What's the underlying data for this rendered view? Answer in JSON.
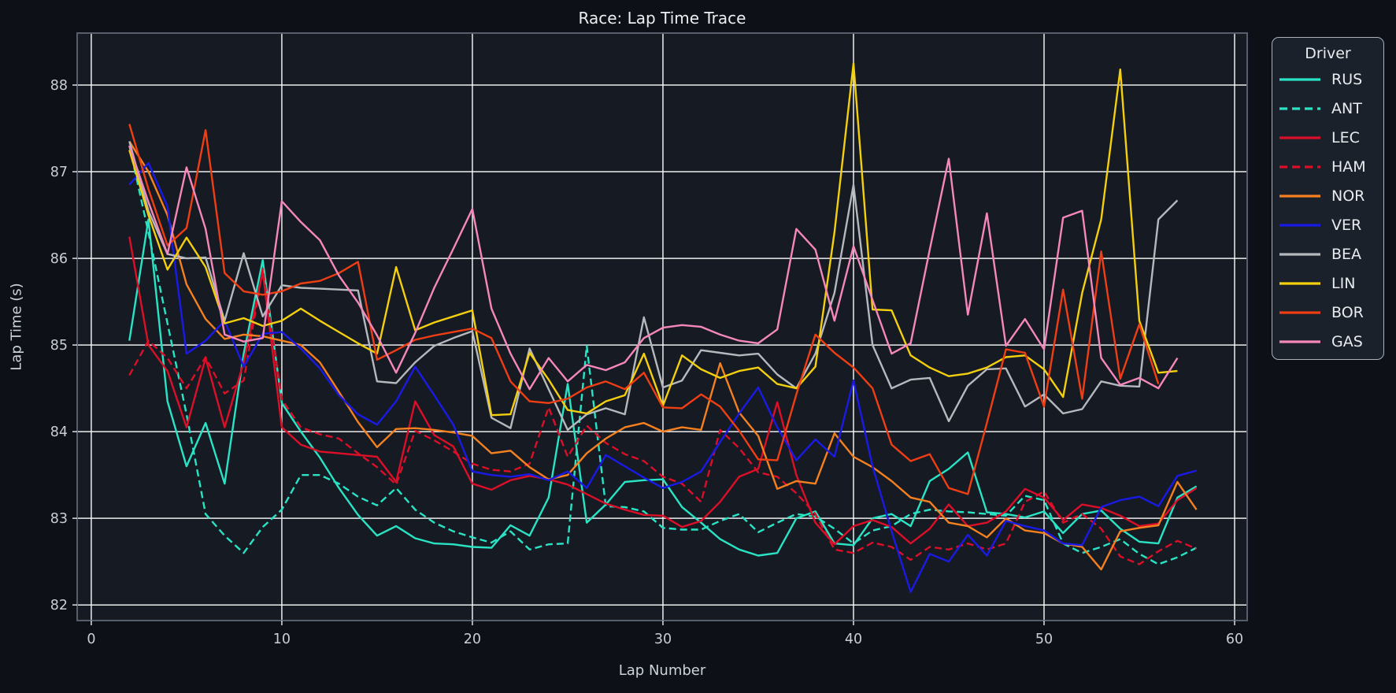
{
  "title": "Race: Lap Time Trace",
  "chart_data": {
    "type": "line",
    "title": "Race: Lap Time Trace",
    "xlabel": "Lap Number",
    "ylabel": "Lap Time (s)",
    "xlim": [
      -0.74,
      60.66
    ],
    "ylim": [
      81.82,
      88.6
    ],
    "xticks": [
      0,
      10,
      20,
      30,
      40,
      50,
      60
    ],
    "yticks": [
      82,
      83,
      84,
      85,
      86,
      87,
      88
    ],
    "grid": true,
    "legend": {
      "title": "Driver",
      "position": "upper right"
    },
    "colors": {
      "background": "#0d1117",
      "axes_background": "#161b23",
      "gridline": "#ffffff",
      "spine": "#555e6a",
      "tick_label": "#c9ced6",
      "text": "#e9ecef"
    },
    "series": [
      {
        "name": "RUS",
        "color": "#2ae3c5",
        "style": "solid",
        "start_lap": 2,
        "lap_times": [
          85.05,
          86.45,
          84.35,
          83.6,
          84.1,
          83.4,
          84.9,
          85.98,
          84.33,
          84.0,
          83.7,
          83.35,
          83.04,
          82.8,
          82.91,
          82.77,
          82.71,
          82.7,
          82.67,
          82.66,
          82.92,
          82.8,
          83.24,
          84.55,
          82.95,
          83.16,
          83.42,
          83.44,
          83.45,
          83.13,
          82.95,
          82.76,
          82.64,
          82.57,
          82.6,
          83.0,
          83.08,
          82.71,
          82.69,
          83.0,
          83.05,
          82.91,
          83.43,
          83.57,
          83.76,
          83.07,
          83.05,
          83.01,
          83.08,
          82.83,
          83.05,
          83.09,
          82.88,
          82.73,
          82.71,
          83.24,
          83.37
        ]
      },
      {
        "name": "ANT",
        "color": "#2ae3c5",
        "style": "dashed",
        "start_lap": 2,
        "lap_times": [
          87.3,
          86.3,
          85.25,
          84.2,
          83.05,
          82.8,
          82.6,
          82.9,
          83.1,
          83.5,
          83.5,
          83.4,
          83.25,
          83.15,
          83.35,
          83.1,
          82.95,
          82.85,
          82.78,
          82.72,
          82.85,
          82.64,
          82.7,
          82.71,
          84.99,
          83.14,
          83.13,
          83.08,
          82.89,
          82.87,
          82.87,
          82.97,
          83.05,
          82.84,
          82.95,
          83.05,
          83.02,
          82.88,
          82.71,
          82.86,
          82.91,
          83.05,
          83.1,
          83.08,
          83.07,
          83.05,
          83.03,
          83.26,
          83.21,
          82.71,
          82.6,
          82.67,
          82.76,
          82.59,
          82.47,
          82.55,
          82.66
        ]
      },
      {
        "name": "LEC",
        "color": "#dc0f28",
        "style": "solid",
        "start_lap": 2,
        "lap_times": [
          86.25,
          85.0,
          84.7,
          84.05,
          84.85,
          84.05,
          84.8,
          85.85,
          84.05,
          83.85,
          83.77,
          83.75,
          83.73,
          83.71,
          83.42,
          84.35,
          83.96,
          83.83,
          83.4,
          83.33,
          83.44,
          83.49,
          83.45,
          83.39,
          83.28,
          83.17,
          83.1,
          83.04,
          83.03,
          82.9,
          82.97,
          83.19,
          83.48,
          83.57,
          84.34,
          83.5,
          82.95,
          82.7,
          82.91,
          82.98,
          82.9,
          82.71,
          82.88,
          83.16,
          82.91,
          82.95,
          83.08,
          83.34,
          83.24,
          82.98,
          83.16,
          83.12,
          83.03,
          82.91,
          82.94,
          83.21,
          83.35
        ]
      },
      {
        "name": "HAM",
        "color": "#dc0f28",
        "style": "dashed",
        "start_lap": 2,
        "lap_times": [
          84.65,
          85.05,
          84.85,
          84.5,
          84.86,
          84.44,
          84.59,
          85.88,
          84.37,
          84.05,
          83.97,
          83.92,
          83.75,
          83.59,
          83.39,
          84.01,
          83.9,
          83.77,
          83.63,
          83.56,
          83.54,
          83.63,
          84.28,
          83.71,
          84.07,
          83.87,
          83.74,
          83.66,
          83.48,
          83.4,
          83.19,
          84.02,
          83.81,
          83.53,
          83.48,
          83.29,
          83.05,
          82.64,
          82.6,
          82.72,
          82.67,
          82.52,
          82.67,
          82.64,
          82.71,
          82.64,
          82.71,
          83.19,
          83.31,
          82.95,
          83.05,
          82.88,
          82.56,
          82.47,
          82.62,
          82.74,
          82.65
        ]
      },
      {
        "name": "NOR",
        "color": "#f58020",
        "style": "solid",
        "start_lap": 2,
        "lap_times": [
          87.35,
          87.0,
          86.5,
          85.7,
          85.3,
          85.07,
          85.12,
          85.1,
          85.05,
          85.0,
          84.8,
          84.46,
          84.11,
          83.82,
          84.03,
          84.04,
          84.02,
          83.99,
          83.95,
          83.75,
          83.78,
          83.59,
          83.45,
          83.5,
          83.75,
          83.92,
          84.05,
          84.1,
          84.0,
          84.05,
          84.02,
          84.79,
          84.22,
          83.95,
          83.34,
          83.43,
          83.4,
          83.98,
          83.71,
          83.59,
          83.43,
          83.24,
          83.19,
          82.95,
          82.91,
          82.78,
          83.0,
          82.86,
          82.83,
          82.71,
          82.67,
          82.41,
          82.85,
          82.89,
          82.92,
          83.42,
          83.1
        ]
      },
      {
        "name": "VER",
        "color": "#1a1ae6",
        "style": "solid",
        "start_lap": 2,
        "lap_times": [
          86.85,
          87.1,
          86.6,
          84.9,
          85.05,
          85.28,
          84.75,
          85.13,
          85.15,
          84.96,
          84.73,
          84.42,
          84.2,
          84.08,
          84.35,
          84.75,
          84.42,
          84.08,
          83.54,
          83.5,
          83.48,
          83.51,
          83.44,
          83.54,
          83.35,
          83.73,
          83.6,
          83.47,
          83.35,
          83.42,
          83.54,
          83.88,
          84.21,
          84.51,
          84.05,
          83.67,
          83.91,
          83.71,
          84.59,
          83.6,
          82.85,
          82.15,
          82.59,
          82.5,
          82.81,
          82.57,
          82.97,
          82.91,
          82.86,
          82.71,
          82.69,
          83.13,
          83.21,
          83.25,
          83.14,
          83.49,
          83.55
        ]
      },
      {
        "name": "BEA",
        "color": "#b5b9be",
        "style": "solid",
        "start_lap": 2,
        "lap_times": [
          87.35,
          86.55,
          86.05,
          86.0,
          86.01,
          85.28,
          86.06,
          85.33,
          85.69,
          85.66,
          85.65,
          85.64,
          85.63,
          84.58,
          84.56,
          84.8,
          84.99,
          85.08,
          85.16,
          84.16,
          84.04,
          84.96,
          84.49,
          84.02,
          84.2,
          84.27,
          84.2,
          85.32,
          84.51,
          84.59,
          84.94,
          84.91,
          84.88,
          84.9,
          84.66,
          84.5,
          84.9,
          85.6,
          86.85,
          85.0,
          84.5,
          84.6,
          84.62,
          84.12,
          84.53,
          84.72,
          84.73,
          84.29,
          84.43,
          84.21,
          84.26,
          84.58,
          84.53,
          84.52,
          86.45,
          86.67
        ]
      },
      {
        "name": "LIN",
        "color": "#f3cf0f",
        "style": "solid",
        "start_lap": 2,
        "lap_times": [
          87.25,
          86.5,
          85.87,
          86.24,
          85.9,
          85.25,
          85.31,
          85.22,
          85.28,
          85.42,
          85.28,
          85.15,
          85.02,
          84.9,
          85.9,
          85.17,
          85.26,
          85.33,
          85.4,
          84.19,
          84.2,
          84.91,
          84.6,
          84.25,
          84.21,
          84.35,
          84.42,
          84.9,
          84.3,
          84.88,
          84.72,
          84.62,
          84.7,
          84.74,
          84.55,
          84.5,
          84.75,
          86.3,
          88.25,
          85.41,
          85.4,
          84.88,
          84.74,
          84.64,
          84.67,
          84.74,
          84.86,
          84.88,
          84.72,
          84.4,
          85.6,
          86.45,
          88.18,
          85.28,
          84.68,
          84.7
        ]
      },
      {
        "name": "BOR",
        "color": "#f03e14",
        "style": "solid",
        "start_lap": 2,
        "lap_times": [
          87.55,
          86.8,
          86.15,
          86.35,
          87.48,
          85.83,
          85.62,
          85.58,
          85.62,
          85.71,
          85.74,
          85.83,
          85.96,
          84.83,
          84.94,
          85.06,
          85.11,
          85.15,
          85.19,
          85.08,
          84.58,
          84.35,
          84.33,
          84.38,
          84.51,
          84.58,
          84.49,
          84.68,
          84.28,
          84.27,
          84.43,
          84.29,
          84.01,
          83.68,
          83.67,
          84.43,
          85.12,
          84.91,
          84.74,
          84.5,
          83.85,
          83.66,
          83.74,
          83.35,
          83.28,
          84.1,
          84.95,
          84.91,
          84.29,
          85.64,
          84.38,
          86.08,
          84.61,
          85.24,
          84.55
        ]
      },
      {
        "name": "GAS",
        "color": "#f687bb",
        "style": "solid",
        "start_lap": 2,
        "lap_times": [
          87.3,
          86.65,
          86.05,
          87.05,
          86.34,
          85.12,
          85.04,
          85.08,
          86.66,
          86.42,
          86.21,
          85.8,
          85.49,
          85.11,
          84.68,
          85.14,
          85.66,
          86.11,
          86.57,
          85.42,
          84.9,
          84.49,
          84.85,
          84.58,
          84.77,
          84.71,
          84.8,
          85.08,
          85.2,
          85.23,
          85.21,
          85.12,
          85.05,
          85.02,
          85.18,
          86.34,
          86.1,
          85.28,
          86.14,
          85.52,
          84.9,
          85.02,
          86.1,
          87.15,
          85.35,
          86.52,
          84.99,
          85.3,
          84.95,
          86.47,
          86.55,
          84.85,
          84.54,
          84.62,
          84.5,
          84.85
        ]
      }
    ]
  }
}
